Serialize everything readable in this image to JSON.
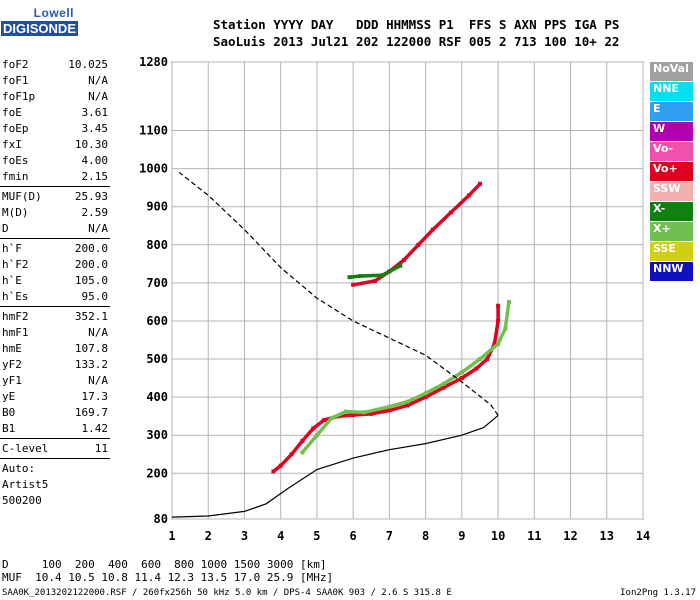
{
  "logo": {
    "line1": "Lowell",
    "line2": "DIGISONDE"
  },
  "header": {
    "line1": "Station YYYY DAY   DDD HHMMSS P1  FFS S AXN PPS IGA PS",
    "line2": "SaoLuis 2013 Jul21 202 122000 RSF 005 2 713 100 10+ 22"
  },
  "params": {
    "group1": [
      {
        "k": "foF2",
        "v": "10.025"
      },
      {
        "k": "foF1",
        "v": "N/A"
      },
      {
        "k": "foF1p",
        "v": "N/A"
      },
      {
        "k": "foE",
        "v": "3.61"
      },
      {
        "k": "foEp",
        "v": "3.45"
      },
      {
        "k": "fxI",
        "v": "10.30"
      },
      {
        "k": "foEs",
        "v": "4.00"
      },
      {
        "k": "fmin",
        "v": "2.15"
      }
    ],
    "group2": [
      {
        "k": "MUF(D)",
        "v": "25.93"
      },
      {
        "k": "M(D)",
        "v": "2.59"
      },
      {
        "k": "D",
        "v": "N/A"
      }
    ],
    "group3": [
      {
        "k": "h`F",
        "v": "200.0"
      },
      {
        "k": "h`F2",
        "v": "200.0"
      },
      {
        "k": "h`E",
        "v": "105.0"
      },
      {
        "k": "h`Es",
        "v": "95.0"
      }
    ],
    "group4": [
      {
        "k": "hmF2",
        "v": "352.1"
      },
      {
        "k": "hmF1",
        "v": "N/A"
      },
      {
        "k": "hmE",
        "v": "107.8"
      },
      {
        "k": "yF2",
        "v": "133.2"
      },
      {
        "k": "yF1",
        "v": "N/A"
      },
      {
        "k": "yE",
        "v": "17.3"
      },
      {
        "k": "B0",
        "v": "169.7"
      },
      {
        "k": "B1",
        "v": "1.42"
      }
    ],
    "group5": [
      {
        "k": "C-level",
        "v": "11"
      }
    ],
    "auto": [
      "Auto:",
      "Artist5",
      "500200"
    ]
  },
  "legend": [
    {
      "label": "NoVal",
      "color": "#a0a0a0"
    },
    {
      "label": "NNE",
      "color": "#00e0f0"
    },
    {
      "label": "E",
      "color": "#30a0f0"
    },
    {
      "label": "W",
      "color": "#b000b0"
    },
    {
      "label": "Vo-",
      "color": "#f050b0"
    },
    {
      "label": "Vo+",
      "color": "#e00020"
    },
    {
      "label": "SSW",
      "color": "#f0b0b0"
    },
    {
      "label": "X-",
      "color": "#108010"
    },
    {
      "label": "X+",
      "color": "#70c050"
    },
    {
      "label": "SSE",
      "color": "#d0d010"
    },
    {
      "label": "NNW",
      "color": "#1010c0"
    }
  ],
  "muf_table": {
    "line1": "D     100  200  400  600  800 1000 1500 3000 [km]",
    "line2": "MUF  10.4 10.5 10.8 11.4 12.3 13.5 17.0 25.9 [MHz]"
  },
  "footer": {
    "file": "SAA0K_2013202122000.RSF / 260fx256h 50 kHz 5.0 km / DPS-4 SAA0K 903 / 2.6 S 315.8 E",
    "version": "Ion2Png 1.3.17"
  },
  "chart_data": {
    "type": "scatter",
    "xlabel": "",
    "ylabel": "",
    "xlim": [
      1,
      14
    ],
    "ylim": [
      80,
      1280
    ],
    "x_ticks": [
      1,
      2,
      3,
      4,
      5,
      6,
      7,
      8,
      9,
      10,
      11,
      12,
      13,
      14
    ],
    "y_ticks": [
      80,
      200,
      300,
      400,
      500,
      600,
      700,
      800,
      900,
      1000,
      1100,
      1280
    ],
    "grid": true,
    "legend_position": "right",
    "series": [
      {
        "name": "Vo+",
        "color": "#e00020",
        "style": "trace",
        "points": [
          [
            3.8,
            205
          ],
          [
            4.0,
            220
          ],
          [
            4.3,
            250
          ],
          [
            4.6,
            285
          ],
          [
            4.9,
            318
          ],
          [
            5.2,
            340
          ],
          [
            5.6,
            350
          ],
          [
            6.0,
            353
          ],
          [
            6.5,
            356
          ],
          [
            7.0,
            365
          ],
          [
            7.5,
            378
          ],
          [
            8.0,
            400
          ],
          [
            8.5,
            425
          ],
          [
            9.0,
            450
          ],
          [
            9.4,
            475
          ],
          [
            9.7,
            500
          ],
          [
            9.9,
            540
          ],
          [
            10.0,
            600
          ],
          [
            10.0,
            640
          ]
        ]
      },
      {
        "name": "X+",
        "color": "#70c050",
        "style": "trace",
        "points": [
          [
            4.6,
            255
          ],
          [
            5.0,
            300
          ],
          [
            5.4,
            345
          ],
          [
            5.8,
            362
          ],
          [
            6.3,
            360
          ],
          [
            7.0,
            375
          ],
          [
            7.5,
            388
          ],
          [
            8.0,
            410
          ],
          [
            8.5,
            435
          ],
          [
            9.0,
            465
          ],
          [
            9.5,
            500
          ],
          [
            10.0,
            540
          ],
          [
            10.2,
            580
          ],
          [
            10.3,
            650
          ]
        ]
      },
      {
        "name": "Vo+ upper",
        "color": "#e00020",
        "style": "trace",
        "points": [
          [
            6.0,
            695
          ],
          [
            6.6,
            705
          ],
          [
            7.0,
            730
          ],
          [
            7.4,
            760
          ],
          [
            7.8,
            800
          ],
          [
            8.2,
            840
          ],
          [
            8.7,
            885
          ],
          [
            9.2,
            930
          ],
          [
            9.5,
            960
          ]
        ]
      },
      {
        "name": "X+ upper",
        "color": "#108010",
        "style": "trace",
        "points": [
          [
            5.9,
            715
          ],
          [
            6.2,
            718
          ],
          [
            6.8,
            720
          ],
          [
            7.3,
            745
          ]
        ]
      },
      {
        "name": "profile",
        "color": "#000000",
        "style": "line",
        "points": [
          [
            1.0,
            85
          ],
          [
            2.0,
            88
          ],
          [
            3.0,
            100
          ],
          [
            3.6,
            120
          ],
          [
            4.2,
            160
          ],
          [
            5.0,
            210
          ],
          [
            6.0,
            240
          ],
          [
            7.0,
            262
          ],
          [
            8.0,
            278
          ],
          [
            9.0,
            300
          ],
          [
            9.6,
            320
          ],
          [
            10.0,
            352
          ]
        ]
      },
      {
        "name": "profile-dashed",
        "color": "#000000",
        "style": "dashed",
        "points": [
          [
            10.0,
            352
          ],
          [
            9.8,
            380
          ],
          [
            9.0,
            440
          ],
          [
            8.0,
            510
          ],
          [
            7.0,
            555
          ],
          [
            6.0,
            600
          ],
          [
            5.0,
            660
          ],
          [
            4.0,
            740
          ],
          [
            3.0,
            840
          ],
          [
            2.0,
            930
          ],
          [
            1.2,
            990
          ]
        ]
      }
    ]
  }
}
